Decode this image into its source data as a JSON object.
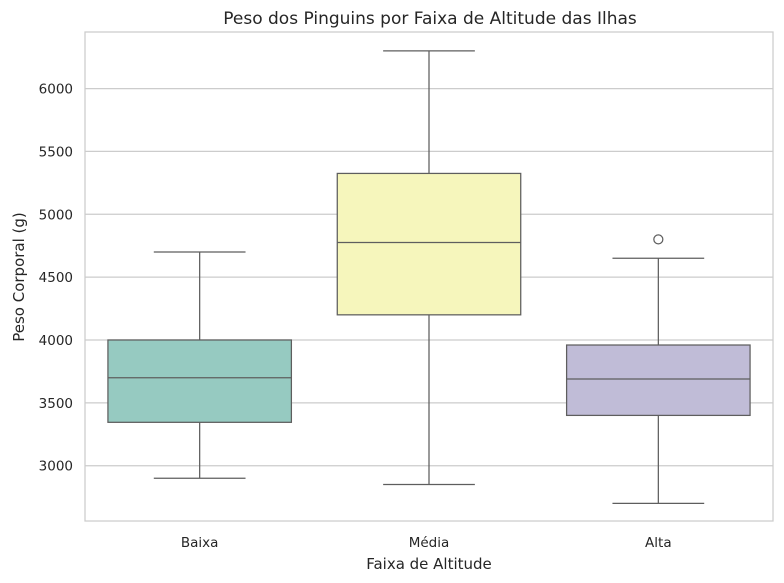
{
  "chart_data": {
    "type": "box",
    "title": "Peso dos Pinguins por Faixa de Altitude das Ilhas",
    "xlabel": "Faixa de Altitude",
    "ylabel": "Peso Corporal (g)",
    "categories": [
      "Baixa",
      "Média",
      "Alta"
    ],
    "ylim": [
      2560,
      6450
    ],
    "yticks": [
      3000,
      3500,
      4000,
      4500,
      5000,
      5500,
      6000
    ],
    "grid": "horizontal",
    "colors": [
      "#96cac1",
      "#f6f6bc",
      "#c0bcd7"
    ],
    "edge_color": "#5e5e5e",
    "boxes": [
      {
        "category": "Baixa",
        "whisker_low": 2900,
        "q1": 3345,
        "median": 3700,
        "q3": 4000,
        "whisker_high": 4700,
        "outliers": []
      },
      {
        "category": "Média",
        "whisker_low": 2850,
        "q1": 4200,
        "median": 4775,
        "q3": 5325,
        "whisker_high": 6300,
        "outliers": []
      },
      {
        "category": "Alta",
        "whisker_low": 2700,
        "q1": 3400,
        "median": 3690,
        "q3": 3960,
        "whisker_high": 4650,
        "outliers": [
          4800
        ]
      }
    ]
  }
}
